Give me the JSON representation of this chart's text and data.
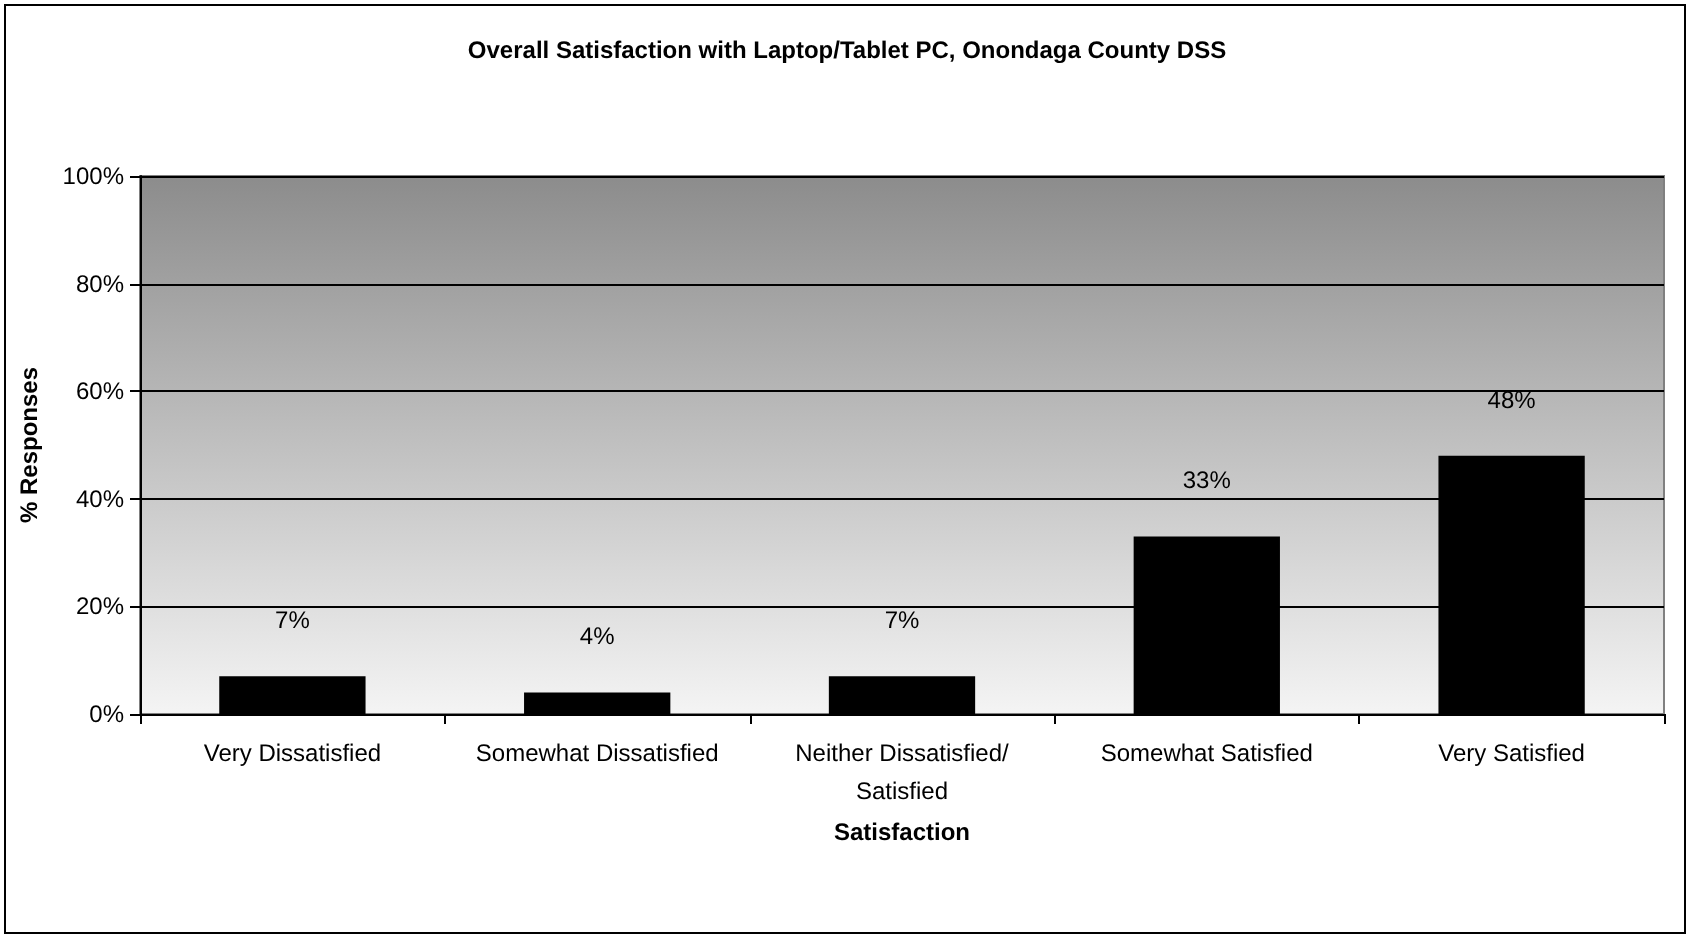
{
  "chart_data": {
    "type": "bar",
    "title": "Overall Satisfaction with Laptop/Tablet PC, Onondaga County DSS",
    "xlabel": "Satisfaction",
    "ylabel": "% Responses",
    "categories": [
      "Very Dissatisfied",
      "Somewhat Dissatisfied",
      "Neither Dissatisfied/Satisfied",
      "Somewhat Satisfied",
      "Very Satisfied"
    ],
    "values": [
      7,
      4,
      7,
      33,
      48
    ],
    "value_labels": [
      "7%",
      "4%",
      "7%",
      "33%",
      "48%"
    ],
    "color": "#000000",
    "ylim": [
      0,
      100
    ],
    "yticks": [
      {
        "value": 0,
        "label": "0%"
      },
      {
        "value": 20,
        "label": "20%"
      },
      {
        "value": 40,
        "label": "40%"
      },
      {
        "value": 60,
        "label": "60%"
      },
      {
        "value": 80,
        "label": "80%"
      },
      {
        "value": 100,
        "label": "100%"
      }
    ],
    "grid": "y"
  }
}
